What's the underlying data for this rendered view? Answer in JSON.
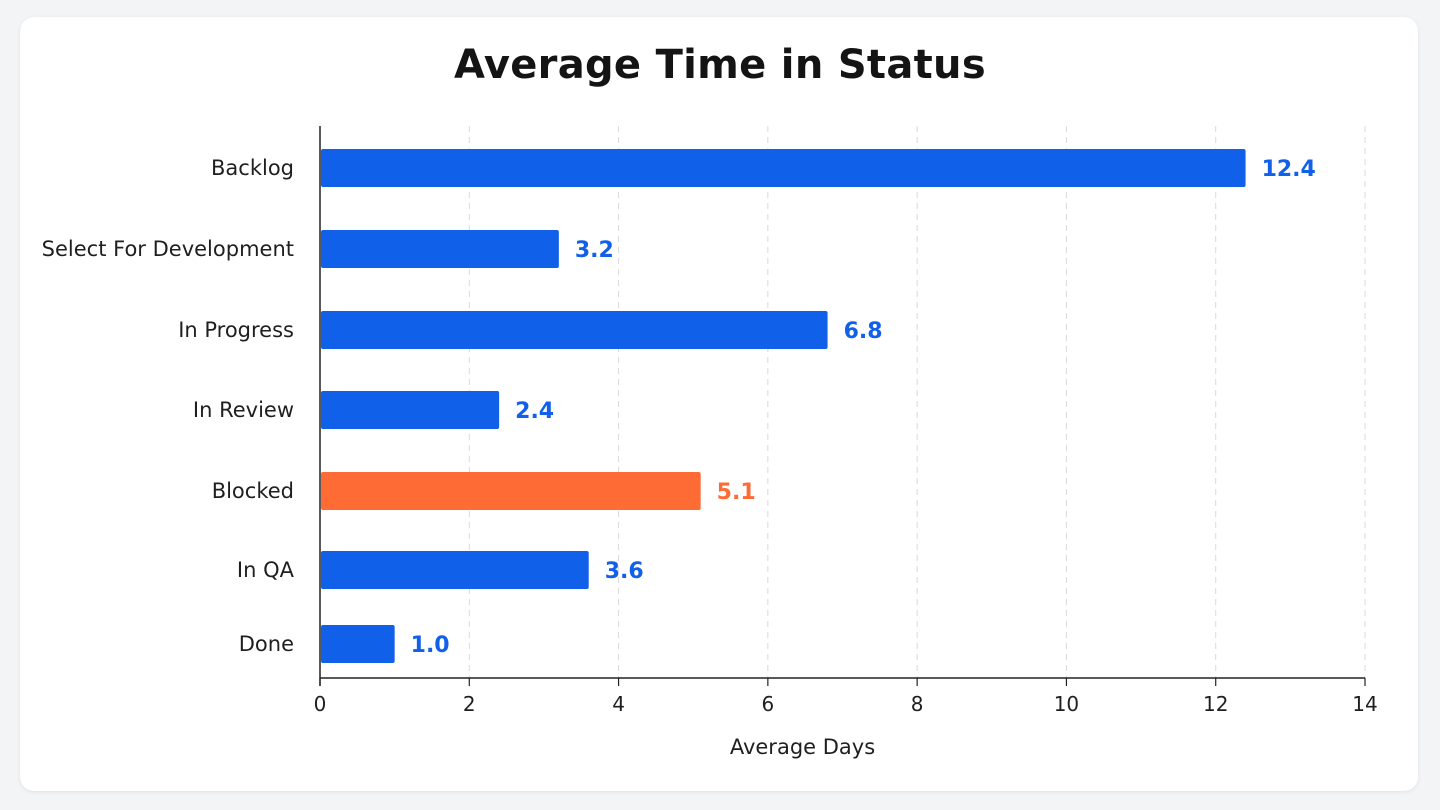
{
  "chart_data": {
    "type": "bar",
    "orientation": "horizontal",
    "title": "Average Time in Status",
    "xlabel": "Average Days",
    "ylabel": "",
    "categories": [
      "Backlog",
      "Select For Development",
      "In Progress",
      "In Review",
      "Blocked",
      "In QA",
      "Done"
    ],
    "values": [
      12.4,
      3.2,
      6.8,
      2.4,
      5.1,
      3.6,
      1.0
    ],
    "value_labels": [
      "12.4",
      "3.2",
      "6.8",
      "2.4",
      "5.1",
      "3.6",
      "1.0"
    ],
    "xlim": [
      0,
      14
    ],
    "xticks": [
      0,
      2,
      4,
      6,
      8,
      10,
      12,
      14
    ],
    "grid": "vertical dashed",
    "highlight_category": "Blocked",
    "colors": {
      "default": "#1160ea",
      "highlight": "#ff6b35"
    }
  }
}
